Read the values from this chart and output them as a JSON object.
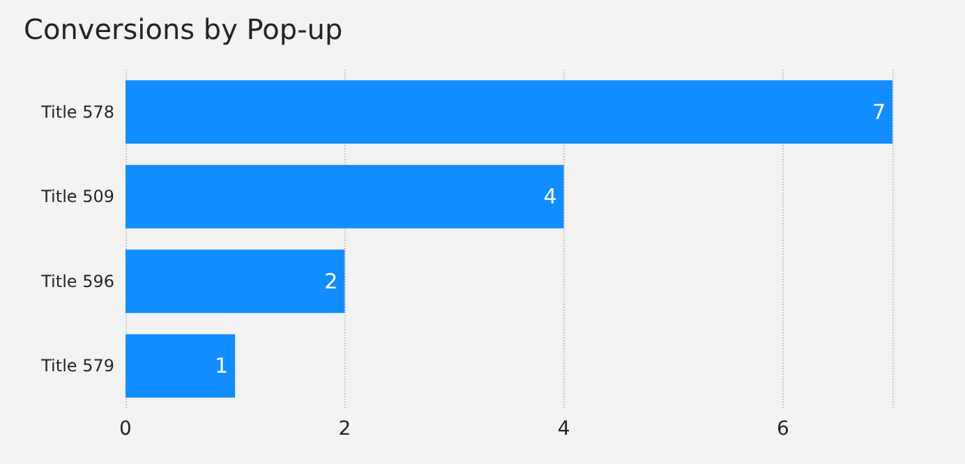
{
  "chart_data": {
    "type": "bar",
    "orientation": "horizontal",
    "title": "Conversions by Pop-up",
    "categories": [
      "Title 578",
      "Title 509",
      "Title 596",
      "Title 579"
    ],
    "values": [
      7,
      4,
      2,
      1
    ],
    "color": "#118dff",
    "data_labels": true,
    "xlim": [
      0,
      7
    ],
    "xticks": [
      0,
      2,
      4,
      6
    ],
    "grid": "x"
  }
}
